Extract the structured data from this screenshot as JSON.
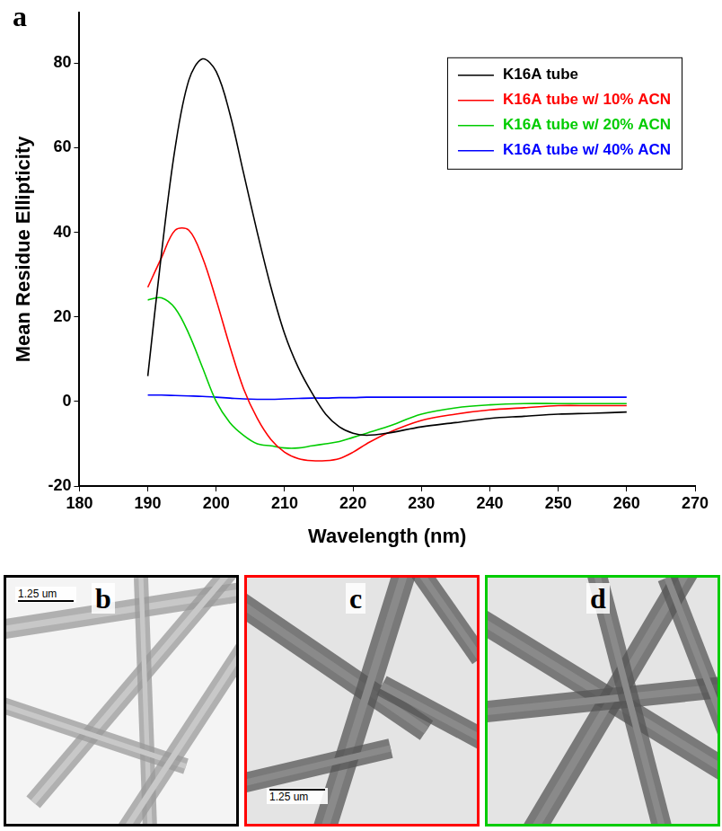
{
  "chart_data": {
    "type": "line",
    "x_label": "Wavelength (nm)",
    "y_label": "Mean Residue Ellipticity",
    "x": [
      190,
      192,
      194,
      196,
      198,
      200,
      202,
      204,
      206,
      208,
      210,
      212,
      214,
      216,
      218,
      220,
      222,
      225,
      230,
      235,
      240,
      245,
      250,
      255,
      260
    ],
    "series": [
      {
        "name": "K16A tube",
        "color": "#000000",
        "values": [
          6,
          35,
          60,
          76,
          81,
          78,
          68,
          54,
          40,
          27,
          16,
          8,
          2,
          -3,
          -6,
          -7.5,
          -8,
          -7.5,
          -6,
          -5,
          -4,
          -3.5,
          -3,
          -2.8,
          -2.5
        ]
      },
      {
        "name": "K16A tube w/ 10% ACN",
        "color": "#ff0000",
        "values": [
          27,
          34,
          40.5,
          40.5,
          34,
          24,
          13,
          3,
          -4,
          -9,
          -12,
          -13.5,
          -14,
          -14,
          -13.5,
          -12,
          -10,
          -7.5,
          -4.5,
          -3,
          -2,
          -1.5,
          -1,
          -1,
          -1
        ]
      },
      {
        "name": "K16A tube w/ 20% ACN",
        "color": "#00cc00",
        "values": [
          24,
          24.5,
          22,
          16,
          8,
          0,
          -5,
          -8,
          -10,
          -10.5,
          -11,
          -11,
          -10.5,
          -10,
          -9.5,
          -8.5,
          -7.5,
          -6,
          -3,
          -1.5,
          -0.8,
          -0.5,
          -0.5,
          -0.5,
          -0.5
        ]
      },
      {
        "name": "K16A tube w/ 40% ACN",
        "color": "#0000ff",
        "values": [
          1.5,
          1.5,
          1.4,
          1.3,
          1.2,
          1,
          0.8,
          0.6,
          0.5,
          0.5,
          0.6,
          0.7,
          0.8,
          0.8,
          0.9,
          0.9,
          1,
          1,
          1,
          1,
          1,
          1,
          1,
          1,
          1
        ]
      }
    ],
    "xlim": [
      180,
      270
    ],
    "xticks": [
      180,
      190,
      200,
      210,
      220,
      230,
      240,
      250,
      260,
      270
    ],
    "ylim": [
      -20,
      92
    ],
    "yticks": [
      -20,
      0,
      20,
      40,
      60,
      80
    ],
    "grid": false,
    "legend": "upper right"
  },
  "panel_label": "a",
  "micrographs": [
    {
      "label": "b",
      "color": "#000000",
      "scale_bar": "1.25 um"
    },
    {
      "label": "c",
      "color": "#ff0000",
      "scale_bar": "1.25 um"
    },
    {
      "label": "d",
      "color": "#00cc00"
    }
  ]
}
